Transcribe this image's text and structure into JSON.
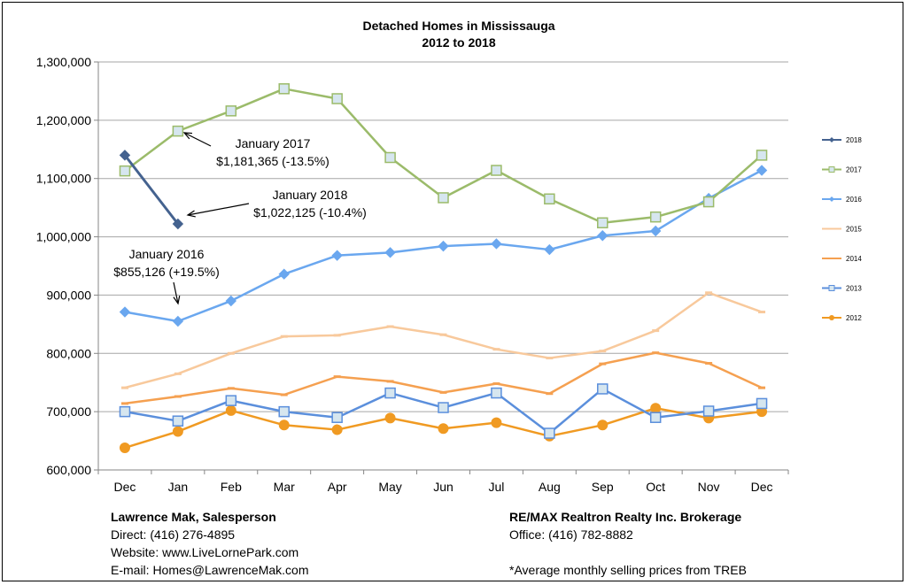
{
  "chart_data": {
    "type": "line",
    "title": "Detached Homes in Mississauga",
    "subtitle": "2012 to 2018",
    "categories": [
      "Dec",
      "Jan",
      "Feb",
      "Mar",
      "Apr",
      "May",
      "Jun",
      "Jul",
      "Aug",
      "Sep",
      "Oct",
      "Nov",
      "Dec"
    ],
    "ylim": [
      600000,
      1300000
    ],
    "yticks": [
      "600,000",
      "700,000",
      "800,000",
      "900,000",
      "1,000,000",
      "1,100,000",
      "1,200,000",
      "1,300,000"
    ],
    "grid": true,
    "legend_position": "right",
    "series": [
      {
        "name": "2018",
        "color": "#44628f",
        "marker": "diamond",
        "values": [
          1140000,
          1022125,
          null,
          null,
          null,
          null,
          null,
          null,
          null,
          null,
          null,
          null,
          null
        ]
      },
      {
        "name": "2017",
        "color": "#9bbb6a",
        "marker": "square",
        "values": [
          1113000,
          1181365,
          1216000,
          1254000,
          1237000,
          1136000,
          1067000,
          1114000,
          1065000,
          1024000,
          1034000,
          1060000,
          1140000
        ]
      },
      {
        "name": "2016",
        "color": "#6aa7ef",
        "marker": "diamond",
        "values": [
          871000,
          855126,
          890000,
          936000,
          968000,
          973000,
          984000,
          988000,
          978000,
          1002000,
          1010000,
          1066000,
          1114000
        ]
      },
      {
        "name": "2015",
        "color": "#f8c99c",
        "marker": "dash",
        "values": [
          741000,
          765000,
          800000,
          829000,
          831000,
          846000,
          832000,
          807000,
          792000,
          804000,
          839000,
          904000,
          871000
        ]
      },
      {
        "name": "2014",
        "color": "#f5a050",
        "marker": "dash",
        "values": [
          714000,
          726000,
          740000,
          729000,
          760000,
          752000,
          733000,
          748000,
          731000,
          782000,
          801000,
          783000,
          741000
        ]
      },
      {
        "name": "2013",
        "color": "#5b8fdc",
        "marker": "square",
        "values": [
          700000,
          684000,
          719000,
          700000,
          690000,
          732000,
          707000,
          732000,
          663000,
          739000,
          690000,
          701000,
          714000
        ]
      },
      {
        "name": "2012",
        "color": "#f09a22",
        "marker": "circle",
        "values": [
          638000,
          666000,
          702000,
          677000,
          669000,
          689000,
          671000,
          681000,
          658000,
          677000,
          706000,
          689000,
          700000
        ]
      }
    ],
    "annotations": [
      {
        "line1": "January 2017",
        "line2": "$1,181,365 (-13.5%)"
      },
      {
        "line1": "January 2018",
        "line2": "$1,022,125 (-10.4%)"
      },
      {
        "line1": "January 2016",
        "line2": "$855,126 (+19.5%)"
      }
    ]
  },
  "footer": {
    "left": {
      "name": "Lawrence Mak, Salesperson",
      "direct": "Direct:  (416) 276-4895",
      "website": "Website:  www.LiveLornePark.com",
      "email": "E-mail:  Homes@LawrenceMak.com"
    },
    "right": {
      "brokerage": "RE/MAX Realtron Realty Inc. Brokerage",
      "office": "Office: (416) 782-8882",
      "note": "*Average monthly selling prices from TREB"
    }
  }
}
